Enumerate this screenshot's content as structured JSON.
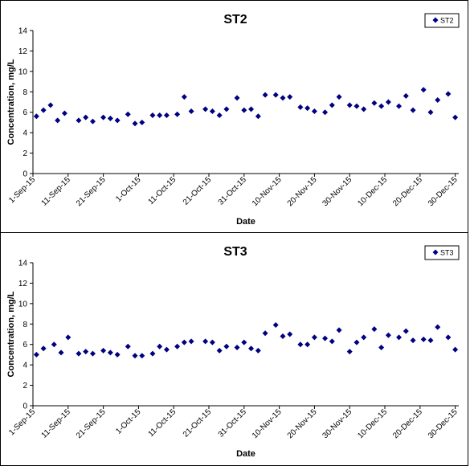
{
  "chart_data": [
    {
      "type": "scatter",
      "title": "ST2",
      "xlabel": "Date",
      "ylabel": "Concentration, mg/L",
      "ylim": [
        0,
        14
      ],
      "yticks": [
        0,
        2,
        4,
        6,
        8,
        10,
        12,
        14
      ],
      "xlim": [
        "2015-09-01",
        "2015-12-31"
      ],
      "xtick_labels": [
        "1-Sep-15",
        "11-Sep-15",
        "21-Sep-15",
        "1-Oct-15",
        "11-Oct-15",
        "21-Oct-15",
        "31-Oct-15",
        "10-Nov-15",
        "20-Nov-15",
        "30-Nov-15",
        "10-Dec-15",
        "20-Dec-15",
        "30-Dec-15"
      ],
      "xtick_dates": [
        "2015-09-01",
        "2015-09-11",
        "2015-09-21",
        "2015-10-01",
        "2015-10-11",
        "2015-10-21",
        "2015-10-31",
        "2015-11-10",
        "2015-11-20",
        "2015-11-30",
        "2015-12-10",
        "2015-12-20",
        "2015-12-30"
      ],
      "grid": false,
      "legend": "top-right",
      "color": "#000080",
      "series": [
        {
          "name": "ST2",
          "points": [
            [
              "2015-09-02",
              5.6
            ],
            [
              "2015-09-04",
              6.2
            ],
            [
              "2015-09-06",
              6.7
            ],
            [
              "2015-09-08",
              5.2
            ],
            [
              "2015-09-10",
              5.9
            ],
            [
              "2015-09-14",
              5.2
            ],
            [
              "2015-09-16",
              5.5
            ],
            [
              "2015-09-18",
              5.1
            ],
            [
              "2015-09-21",
              5.5
            ],
            [
              "2015-09-23",
              5.4
            ],
            [
              "2015-09-25",
              5.2
            ],
            [
              "2015-09-28",
              5.8
            ],
            [
              "2015-09-30",
              4.9
            ],
            [
              "2015-10-02",
              5.0
            ],
            [
              "2015-10-05",
              5.7
            ],
            [
              "2015-10-07",
              5.7
            ],
            [
              "2015-10-09",
              5.7
            ],
            [
              "2015-10-12",
              5.8
            ],
            [
              "2015-10-14",
              7.5
            ],
            [
              "2015-10-16",
              6.1
            ],
            [
              "2015-10-20",
              6.3
            ],
            [
              "2015-10-22",
              6.1
            ],
            [
              "2015-10-24",
              5.7
            ],
            [
              "2015-10-26",
              6.3
            ],
            [
              "2015-10-29",
              7.4
            ],
            [
              "2015-10-31",
              6.2
            ],
            [
              "2015-11-02",
              6.3
            ],
            [
              "2015-11-04",
              5.6
            ],
            [
              "2015-11-06",
              7.7
            ],
            [
              "2015-11-09",
              7.7
            ],
            [
              "2015-11-11",
              7.4
            ],
            [
              "2015-11-13",
              7.5
            ],
            [
              "2015-11-16",
              6.5
            ],
            [
              "2015-11-18",
              6.4
            ],
            [
              "2015-11-20",
              6.1
            ],
            [
              "2015-11-23",
              6.0
            ],
            [
              "2015-11-25",
              6.7
            ],
            [
              "2015-11-27",
              7.5
            ],
            [
              "2015-11-30",
              6.7
            ],
            [
              "2015-12-02",
              6.6
            ],
            [
              "2015-12-04",
              6.3
            ],
            [
              "2015-12-07",
              6.9
            ],
            [
              "2015-12-09",
              6.6
            ],
            [
              "2015-12-11",
              7.0
            ],
            [
              "2015-12-14",
              6.6
            ],
            [
              "2015-12-16",
              7.6
            ],
            [
              "2015-12-18",
              6.2
            ],
            [
              "2015-12-21",
              8.2
            ],
            [
              "2015-12-23",
              6.0
            ],
            [
              "2015-12-25",
              7.2
            ],
            [
              "2015-12-28",
              7.8
            ],
            [
              "2015-12-30",
              5.5
            ]
          ]
        }
      ]
    },
    {
      "type": "scatter",
      "title": "ST3",
      "xlabel": "Date",
      "ylabel": "Concentration, mg/L",
      "ylim": [
        0,
        14
      ],
      "yticks": [
        0,
        2,
        4,
        6,
        8,
        10,
        12,
        14
      ],
      "xlim": [
        "2015-09-01",
        "2015-12-31"
      ],
      "xtick_labels": [
        "1-Sep-15",
        "11-Sep-15",
        "21-Sep-15",
        "1-Oct-15",
        "11-Oct-15",
        "21-Oct-15",
        "31-Oct-15",
        "10-Nov-15",
        "20-Nov-15",
        "30-Nov-15",
        "10-Dec-15",
        "20-Dec-15",
        "30-Dec-15"
      ],
      "xtick_dates": [
        "2015-09-01",
        "2015-09-11",
        "2015-09-21",
        "2015-10-01",
        "2015-10-11",
        "2015-10-21",
        "2015-10-31",
        "2015-11-10",
        "2015-11-20",
        "2015-11-30",
        "2015-12-10",
        "2015-12-20",
        "2015-12-30"
      ],
      "grid": false,
      "legend": "top-right",
      "color": "#000080",
      "series": [
        {
          "name": "ST3",
          "points": [
            [
              "2015-09-02",
              5.0
            ],
            [
              "2015-09-04",
              5.6
            ],
            [
              "2015-09-07",
              6.0
            ],
            [
              "2015-09-09",
              5.2
            ],
            [
              "2015-09-11",
              6.7
            ],
            [
              "2015-09-14",
              5.1
            ],
            [
              "2015-09-16",
              5.3
            ],
            [
              "2015-09-18",
              5.1
            ],
            [
              "2015-09-21",
              5.4
            ],
            [
              "2015-09-23",
              5.2
            ],
            [
              "2015-09-25",
              5.0
            ],
            [
              "2015-09-28",
              5.8
            ],
            [
              "2015-09-30",
              4.9
            ],
            [
              "2015-10-02",
              4.9
            ],
            [
              "2015-10-05",
              5.1
            ],
            [
              "2015-10-07",
              5.8
            ],
            [
              "2015-10-09",
              5.5
            ],
            [
              "2015-10-12",
              5.8
            ],
            [
              "2015-10-14",
              6.2
            ],
            [
              "2015-10-16",
              6.3
            ],
            [
              "2015-10-20",
              6.3
            ],
            [
              "2015-10-22",
              6.2
            ],
            [
              "2015-10-24",
              5.4
            ],
            [
              "2015-10-26",
              5.8
            ],
            [
              "2015-10-29",
              5.7
            ],
            [
              "2015-10-31",
              6.2
            ],
            [
              "2015-11-02",
              5.6
            ],
            [
              "2015-11-04",
              5.4
            ],
            [
              "2015-11-06",
              7.1
            ],
            [
              "2015-11-09",
              7.9
            ],
            [
              "2015-11-11",
              6.8
            ],
            [
              "2015-11-13",
              7.0
            ],
            [
              "2015-11-16",
              6.0
            ],
            [
              "2015-11-18",
              6.0
            ],
            [
              "2015-11-20",
              6.7
            ],
            [
              "2015-11-23",
              6.6
            ],
            [
              "2015-11-25",
              6.3
            ],
            [
              "2015-11-27",
              7.4
            ],
            [
              "2015-11-30",
              5.3
            ],
            [
              "2015-12-02",
              6.2
            ],
            [
              "2015-12-04",
              6.7
            ],
            [
              "2015-12-07",
              7.5
            ],
            [
              "2015-12-09",
              5.7
            ],
            [
              "2015-12-11",
              6.9
            ],
            [
              "2015-12-14",
              6.7
            ],
            [
              "2015-12-16",
              7.3
            ],
            [
              "2015-12-18",
              6.4
            ],
            [
              "2015-12-21",
              6.5
            ],
            [
              "2015-12-23",
              6.4
            ],
            [
              "2015-12-25",
              7.7
            ],
            [
              "2015-12-28",
              6.7
            ],
            [
              "2015-12-30",
              5.5
            ]
          ]
        }
      ]
    }
  ]
}
